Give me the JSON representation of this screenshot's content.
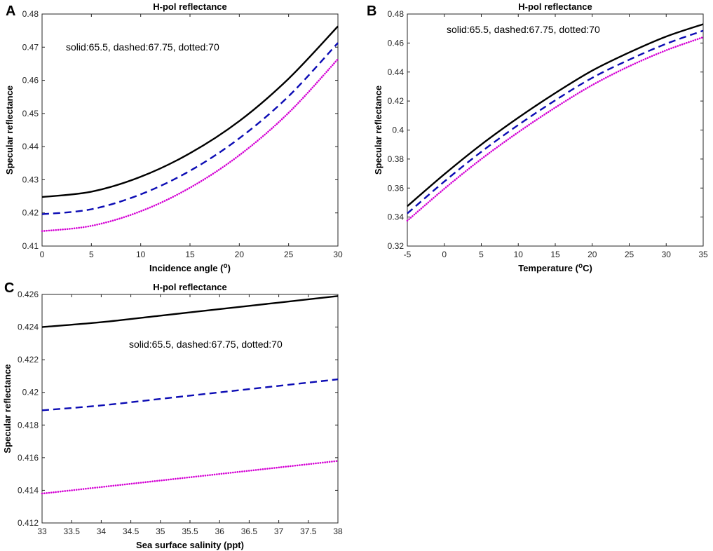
{
  "colors": {
    "solid": "#000000",
    "dashed": "#0b0bb4",
    "dotted": "#d400d4",
    "axis": "#262626"
  },
  "chart_data": [
    {
      "panel": "A",
      "type": "line",
      "title": "H-pol reflectance",
      "xlabel": "Incidence angle (",
      "xlabel_sup": "o",
      "xlabel_end": ")",
      "ylabel": "Specular reflectance",
      "annotation": "solid:65.5, dashed:67.75, dotted:70",
      "xlim": [
        0,
        30
      ],
      "ylim": [
        0.41,
        0.48
      ],
      "xticks": [
        0,
        5,
        10,
        15,
        20,
        25,
        30
      ],
      "xtick_labels": [
        "0",
        "5",
        "10",
        "15",
        "20",
        "25",
        "30"
      ],
      "yticks": [
        0.41,
        0.42,
        0.43,
        0.44,
        0.45,
        0.46,
        0.47,
        0.48
      ],
      "ytick_labels": [
        "0.41",
        "0.42",
        "0.43",
        "0.44",
        "0.45",
        "0.46",
        "0.47",
        "0.48"
      ],
      "x": [
        0,
        5,
        10,
        15,
        20,
        25,
        30
      ],
      "series": [
        {
          "name": "solid:65.5",
          "style": "solid",
          "values": [
            0.4248,
            0.4264,
            0.4309,
            0.438,
            0.4477,
            0.4605,
            0.4763
          ]
        },
        {
          "name": "dashed:67.75",
          "style": "dashed",
          "values": [
            0.4196,
            0.4211,
            0.4256,
            0.4327,
            0.4425,
            0.4552,
            0.4713
          ]
        },
        {
          "name": "dotted:70",
          "style": "dotted",
          "values": [
            0.4145,
            0.4161,
            0.4205,
            0.4276,
            0.4374,
            0.4502,
            0.4664
          ]
        }
      ]
    },
    {
      "panel": "B",
      "type": "line",
      "title": "H-pol reflectance",
      "xlabel": "Temperature (",
      "xlabel_sup": "o",
      "xlabel_end": "C)",
      "ylabel": "Specular reflectance",
      "annotation": "solid:65.5, dashed:67.75, dotted:70",
      "xlim": [
        -5,
        35
      ],
      "ylim": [
        0.32,
        0.48
      ],
      "xticks": [
        -5,
        0,
        5,
        10,
        15,
        20,
        25,
        30,
        35
      ],
      "xtick_labels": [
        "-5",
        "0",
        "5",
        "10",
        "15",
        "20",
        "25",
        "30",
        "35"
      ],
      "yticks": [
        0.32,
        0.34,
        0.36,
        0.38,
        0.4,
        0.42,
        0.44,
        0.46,
        0.48
      ],
      "ytick_labels": [
        "0.32",
        "0.34",
        "0.36",
        "0.38",
        "0.4",
        "0.42",
        "0.44",
        "0.46",
        "0.48"
      ],
      "x": [
        -5,
        0,
        5,
        10,
        15,
        20,
        25,
        30,
        35
      ],
      "series": [
        {
          "name": "solid:65.5",
          "style": "solid",
          "values": [
            0.3475,
            0.3695,
            0.39,
            0.4085,
            0.4255,
            0.441,
            0.4535,
            0.4645,
            0.473
          ]
        },
        {
          "name": "dashed:67.75",
          "style": "dashed",
          "values": [
            0.3425,
            0.3645,
            0.385,
            0.4035,
            0.4205,
            0.436,
            0.4485,
            0.4595,
            0.4685
          ]
        },
        {
          "name": "dotted:70",
          "style": "dotted",
          "values": [
            0.3375,
            0.3595,
            0.38,
            0.3985,
            0.4155,
            0.431,
            0.444,
            0.455,
            0.464
          ]
        }
      ]
    },
    {
      "panel": "C",
      "type": "line",
      "title": "H-pol reflectance",
      "xlabel": "Sea surface salinity (ppt)",
      "xlabel_sup": "",
      "xlabel_end": "",
      "ylabel": "Specular reflectance",
      "annotation": "solid:65.5, dashed:67.75, dotted:70",
      "xlim": [
        33,
        38
      ],
      "ylim": [
        0.412,
        0.426
      ],
      "xticks": [
        33,
        33.5,
        34,
        34.5,
        35,
        35.5,
        36,
        36.5,
        37,
        37.5,
        38
      ],
      "xtick_labels": [
        "33",
        "33.5",
        "34",
        "34.5",
        "35",
        "35.5",
        "36",
        "36.5",
        "37",
        "37.5",
        "38"
      ],
      "yticks": [
        0.412,
        0.414,
        0.416,
        0.418,
        0.42,
        0.422,
        0.424,
        0.426
      ],
      "ytick_labels": [
        "0.412",
        "0.414",
        "0.416",
        "0.418",
        "0.42",
        "0.422",
        "0.424",
        "0.426"
      ],
      "x": [
        33,
        34,
        35,
        36,
        37,
        38
      ],
      "series": [
        {
          "name": "solid:65.5",
          "style": "solid",
          "values": [
            0.424,
            0.4243,
            0.4247,
            0.4251,
            0.4255,
            0.4259
          ]
        },
        {
          "name": "dashed:67.75",
          "style": "dashed",
          "values": [
            0.4189,
            0.4192,
            0.4196,
            0.42,
            0.4204,
            0.4208
          ]
        },
        {
          "name": "dotted:70",
          "style": "dotted",
          "values": [
            0.4138,
            0.4142,
            0.4146,
            0.415,
            0.4154,
            0.4158
          ]
        }
      ]
    }
  ]
}
